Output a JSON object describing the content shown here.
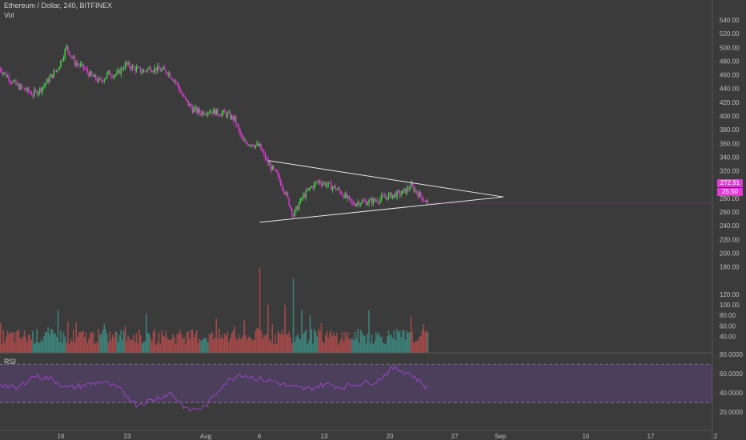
{
  "header": {
    "title": "Ethereum / Dollar, 240, BITFINEX",
    "vol_label": "Vol",
    "rsi_label": "RSI"
  },
  "price_tags": {
    "last_price": "272.91",
    "countdown": "25:50"
  },
  "colors": {
    "background": "#3b3b3b",
    "up": "#3ddc3d",
    "down": "#e23ad8",
    "vol_up": "#3d8f86",
    "vol_down": "#b54c4c",
    "rsi_fill": "#4b3f5c",
    "rsi_line": "#9c44c7",
    "trendline": "#e8e8e8"
  },
  "chart_data": [
    {
      "type": "candlestick",
      "title": "Ethereum / Dollar, 240, BITFINEX",
      "x_ticks": [
        "16",
        "23",
        "Aug",
        "6",
        "13",
        "20",
        "27",
        "Sep",
        "10",
        "17",
        "2"
      ],
      "y_ticks": [
        "540.00",
        "520.00",
        "500.00",
        "480.00",
        "460.00",
        "440.00",
        "420.00",
        "400.00",
        "380.00",
        "360.00",
        "340.00",
        "320.00",
        "300.00",
        "280.00",
        "260.00",
        "240.00",
        "220.00",
        "200.00",
        "180.00"
      ],
      "ylim": [
        170,
        550
      ],
      "grid": false,
      "close_path": [
        {
          "x": "Jul 10",
          "y": 470
        },
        {
          "x": "Jul 12",
          "y": 445
        },
        {
          "x": "Jul 14",
          "y": 432
        },
        {
          "x": "Jul 15",
          "y": 440
        },
        {
          "x": "Jul 16",
          "y": 455
        },
        {
          "x": "Jul 17",
          "y": 470
        },
        {
          "x": "Jul 18",
          "y": 500
        },
        {
          "x": "Jul 19",
          "y": 478
        },
        {
          "x": "Jul 20",
          "y": 470
        },
        {
          "x": "Jul 21",
          "y": 458
        },
        {
          "x": "Jul 22",
          "y": 450
        },
        {
          "x": "Jul 23",
          "y": 462
        },
        {
          "x": "Jul 24",
          "y": 460
        },
        {
          "x": "Jul 25",
          "y": 475
        },
        {
          "x": "Jul 26",
          "y": 470
        },
        {
          "x": "Jul 27",
          "y": 465
        },
        {
          "x": "Jul 28",
          "y": 470
        },
        {
          "x": "Jul 30",
          "y": 465
        },
        {
          "x": "Jul 31",
          "y": 450
        },
        {
          "x": "Aug 1",
          "y": 425
        },
        {
          "x": "Aug 2",
          "y": 410
        },
        {
          "x": "Aug 3",
          "y": 405
        },
        {
          "x": "Aug 4",
          "y": 408
        },
        {
          "x": "Aug 5",
          "y": 405
        },
        {
          "x": "Aug 6",
          "y": 403
        },
        {
          "x": "Aug 7",
          "y": 395
        },
        {
          "x": "Aug 8",
          "y": 362
        },
        {
          "x": "Aug 9",
          "y": 360
        },
        {
          "x": "Aug 10",
          "y": 355
        },
        {
          "x": "Aug 11",
          "y": 330
        },
        {
          "x": "Aug 12",
          "y": 315
        },
        {
          "x": "Aug 13",
          "y": 290
        },
        {
          "x": "Aug 14",
          "y": 255
        },
        {
          "x": "Aug 15",
          "y": 280
        },
        {
          "x": "Aug 16",
          "y": 295
        },
        {
          "x": "Aug 17",
          "y": 305
        },
        {
          "x": "Aug 18",
          "y": 300
        },
        {
          "x": "Aug 19",
          "y": 295
        },
        {
          "x": "Aug 20",
          "y": 285
        },
        {
          "x": "Aug 21",
          "y": 272
        },
        {
          "x": "Aug 22",
          "y": 275
        },
        {
          "x": "Aug 23",
          "y": 275
        },
        {
          "x": "Aug 24",
          "y": 278
        },
        {
          "x": "Aug 25",
          "y": 282
        },
        {
          "x": "Aug 26",
          "y": 285
        },
        {
          "x": "Aug 27",
          "y": 288
        },
        {
          "x": "Aug 28",
          "y": 298
        },
        {
          "x": "Aug 29",
          "y": 285
        },
        {
          "x": "Aug 30",
          "y": 273
        }
      ],
      "trendlines": [
        {
          "name": "upper",
          "from": {
            "x": "Aug 11",
            "y": 335
          },
          "to": {
            "x": "Sep 8",
            "y": 282
          }
        },
        {
          "name": "lower",
          "from": {
            "x": "Aug 10",
            "y": 245
          },
          "to": {
            "x": "Sep 8",
            "y": 282
          }
        }
      ]
    },
    {
      "type": "bar",
      "title": "",
      "ylabel": "Vol",
      "y_ticks": [
        "120.00",
        "100.00",
        "80.00",
        "60.00",
        "40.00"
      ],
      "ylim": [
        20,
        160
      ],
      "peaks": [
        {
          "x": "Jul 10",
          "y": 95
        },
        {
          "x": "Jul 17",
          "y": 90
        },
        {
          "x": "Jul 25",
          "y": 60
        },
        {
          "x": "Aug 7",
          "y": 60
        },
        {
          "x": "Aug 10",
          "y": 170
        },
        {
          "x": "Aug 11",
          "y": 100
        },
        {
          "x": "Aug 13",
          "y": 100
        },
        {
          "x": "Aug 14",
          "y": 150
        },
        {
          "x": "Aug 15",
          "y": 90
        },
        {
          "x": "Aug 16",
          "y": 80
        },
        {
          "x": "Aug 23",
          "y": 90
        }
      ],
      "typical_range": [
        25,
        55
      ]
    },
    {
      "type": "line",
      "title": "",
      "ylabel": "RSI",
      "y_ticks": [
        "80.0000",
        "60.0000",
        "40.0000",
        "20.0000"
      ],
      "ylim": [
        10,
        85
      ],
      "bands": [
        70,
        30
      ],
      "series": [
        {
          "name": "RSI",
          "values": [
            50,
            44,
            58,
            55,
            45,
            48,
            52,
            44,
            28,
            33,
            40,
            22,
            25,
            48,
            60,
            55,
            52,
            46,
            44,
            49,
            46,
            50,
            52,
            66,
            60,
            45
          ]
        }
      ]
    }
  ]
}
